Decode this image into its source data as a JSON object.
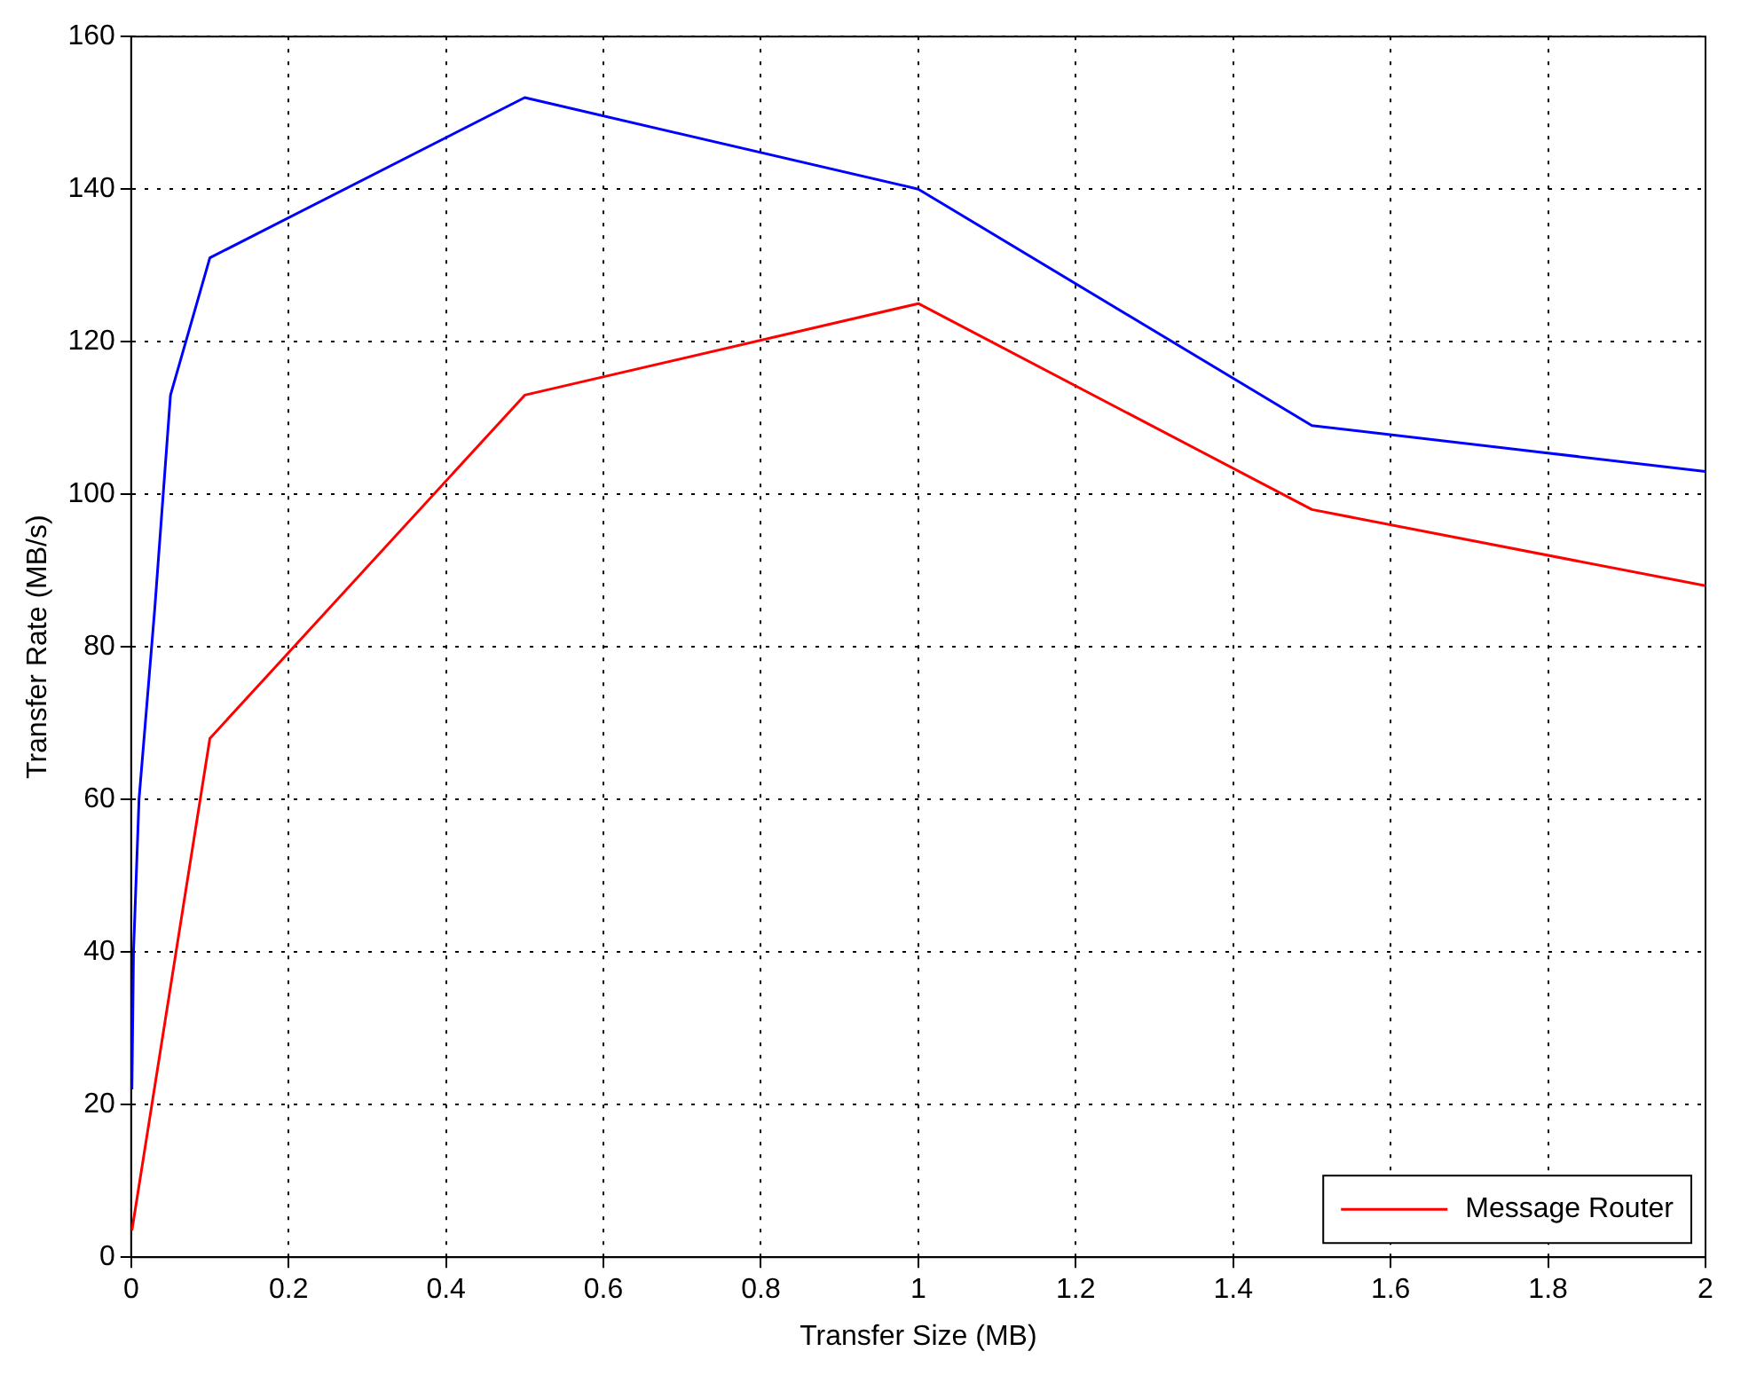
{
  "chart_data": {
    "type": "line",
    "xlabel": "Transfer Size (MB)",
    "ylabel": "Transfer Rate (MB/s)",
    "xlim": [
      0,
      2
    ],
    "xticks": [
      0,
      0.2,
      0.4,
      0.6,
      0.8,
      1,
      1.2,
      1.4,
      1.6,
      1.8,
      2
    ],
    "ylim": [
      0,
      160
    ],
    "yticks": [
      0,
      20,
      40,
      60,
      80,
      100,
      120,
      140,
      160
    ],
    "grid": true,
    "legend": "bottom right",
    "marker": "none",
    "line_style": "solid",
    "series": [
      {
        "color": "#0000ff",
        "x": [
          0.001,
          0.003,
          0.01,
          0.03,
          0.05,
          0.1,
          0.5,
          1,
          1.5,
          2
        ],
        "values": [
          22,
          40,
          60,
          85,
          113,
          131,
          152,
          140,
          109,
          103
        ]
      },
      {
        "name": "Message Router",
        "color": "#ff0000",
        "x": [
          0.001,
          0.1,
          0.5,
          1,
          1.5,
          2
        ],
        "values": [
          3.5,
          68,
          113,
          125,
          98,
          88
        ]
      }
    ]
  }
}
